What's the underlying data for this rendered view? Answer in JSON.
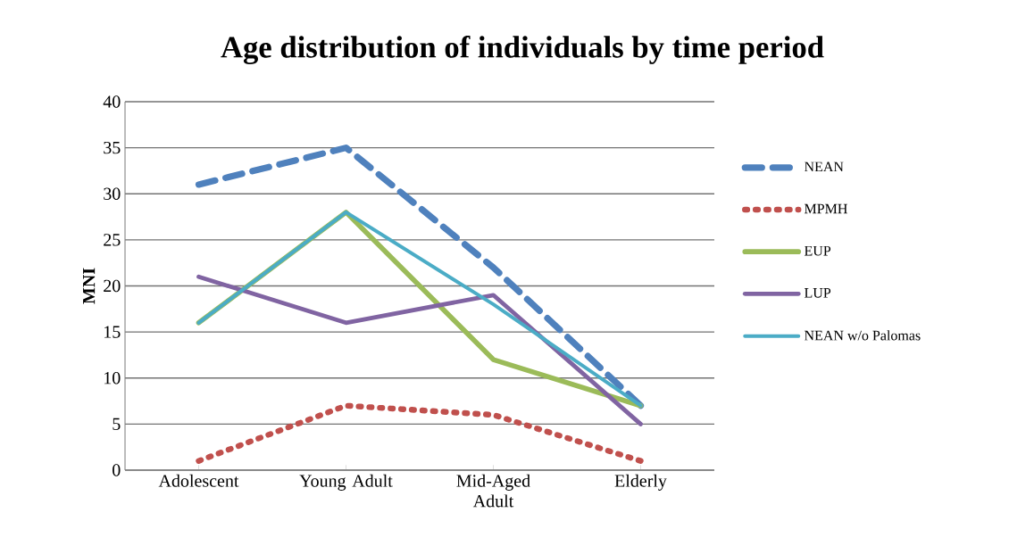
{
  "chart_data": {
    "type": "line",
    "title": "Age distribution of individuals by time period",
    "ylabel": "MNI",
    "categories": [
      "Adolescent",
      "Young Adult",
      "Mid-Aged Adult",
      "Elderly"
    ],
    "series": [
      {
        "name": "NEAN",
        "color": "#4f81bd",
        "line_style": "dashed",
        "values": [
          31,
          35,
          22,
          7
        ]
      },
      {
        "name": "MPMH",
        "color": "#c0504d",
        "line_style": "dotted",
        "values": [
          1,
          7,
          6,
          1
        ]
      },
      {
        "name": "EUP",
        "color": "#9bbb59",
        "line_style": "solid",
        "values": [
          16,
          28,
          12,
          7
        ]
      },
      {
        "name": "LUP",
        "color": "#8064a2",
        "line_style": "solid",
        "values": [
          21,
          16,
          19,
          5
        ]
      },
      {
        "name": "NEAN w/o Palomas",
        "color": "#4bacc6",
        "line_style": "solid",
        "values": [
          16,
          28,
          18,
          7
        ]
      }
    ],
    "ylim": [
      0,
      40
    ],
    "yticks": [
      0,
      5,
      10,
      15,
      20,
      25,
      30,
      35,
      40
    ],
    "grid": "y",
    "legend": "right",
    "marker": "none"
  }
}
